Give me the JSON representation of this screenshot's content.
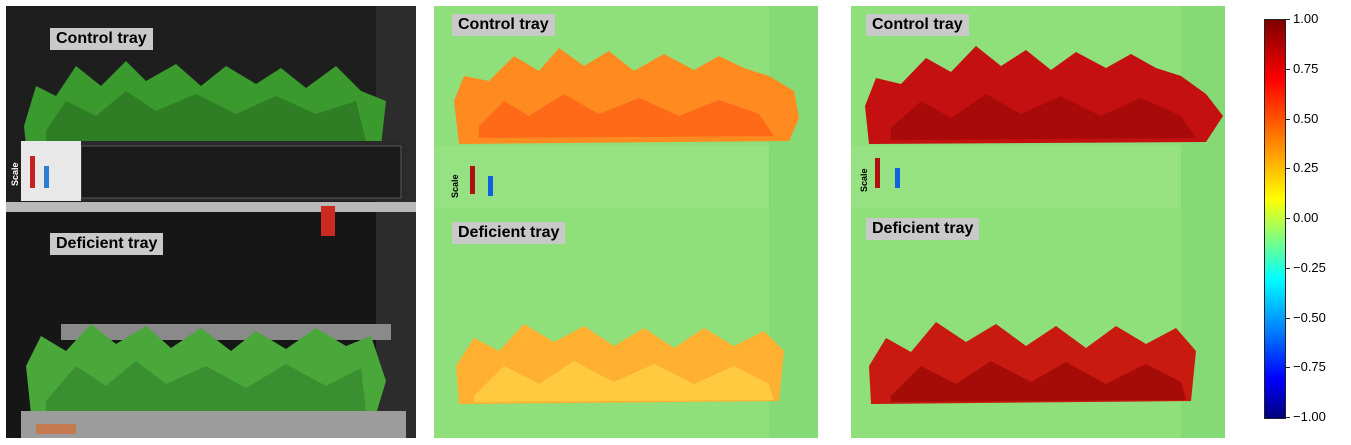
{
  "photo": {
    "control_label": "Control tray",
    "deficient_label": "Deficient tray",
    "scale_word": "Scale"
  },
  "map_left": {
    "control_label": "Control tray",
    "deficient_label": "Deficient tray",
    "scale_word": "Scale"
  },
  "map_right": {
    "control_label": "Control tray",
    "deficient_label": "Deficient tray",
    "scale_word": "Scale"
  },
  "colorbar": {
    "ticks": [
      "1.00",
      "0.75",
      "0.50",
      "0.25",
      "0.00",
      "−0.25",
      "−0.50",
      "−0.75",
      "−1.00"
    ],
    "range": [
      -1.0,
      1.0
    ],
    "colormap": "jet"
  },
  "colors": {
    "leaf_green": "#3a9a2e",
    "map_background": "#8fe07a",
    "control_left": "#ff8a20",
    "deficient_left": "#ffb030",
    "control_right": "#c41010",
    "deficient_right": "#c81a10"
  }
}
